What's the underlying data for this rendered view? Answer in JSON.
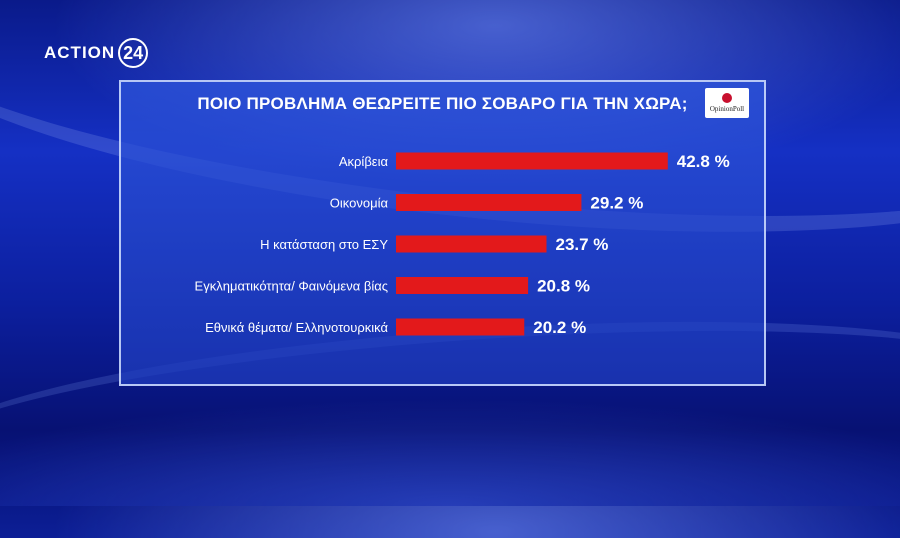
{
  "brand": {
    "name": "ACTION",
    "number": "24"
  },
  "pollster": {
    "name": "OpinionPoll"
  },
  "colors": {
    "bar": "#e3191b",
    "panel": "#2a55d8",
    "text": "#ffffff"
  },
  "chart_data": {
    "type": "bar",
    "orientation": "horizontal",
    "title": "ΠΟΙΟ ΠΡΟΒΛΗΜΑ ΘΕΩΡΕΙΤΕ ΠΙΟ ΣΟΒΑΡΟ ΓΙΑ ΤΗΝ ΧΩΡΑ;",
    "categories": [
      "Ακρίβεια",
      "Οικονομία",
      "Η κατάσταση στο ΕΣΥ",
      "Εγκληματικότητα/ Φαινόμενα βίας",
      "Εθνικά θέματα/ Ελληνοτουρκικά"
    ],
    "values": [
      42.8,
      29.2,
      23.7,
      20.8,
      20.2
    ],
    "value_labels": [
      "42.8 %",
      "29.2 %",
      "23.7 %",
      "20.8 %",
      "20.2 %"
    ],
    "unit": "%",
    "grid": false,
    "legend": "none"
  }
}
